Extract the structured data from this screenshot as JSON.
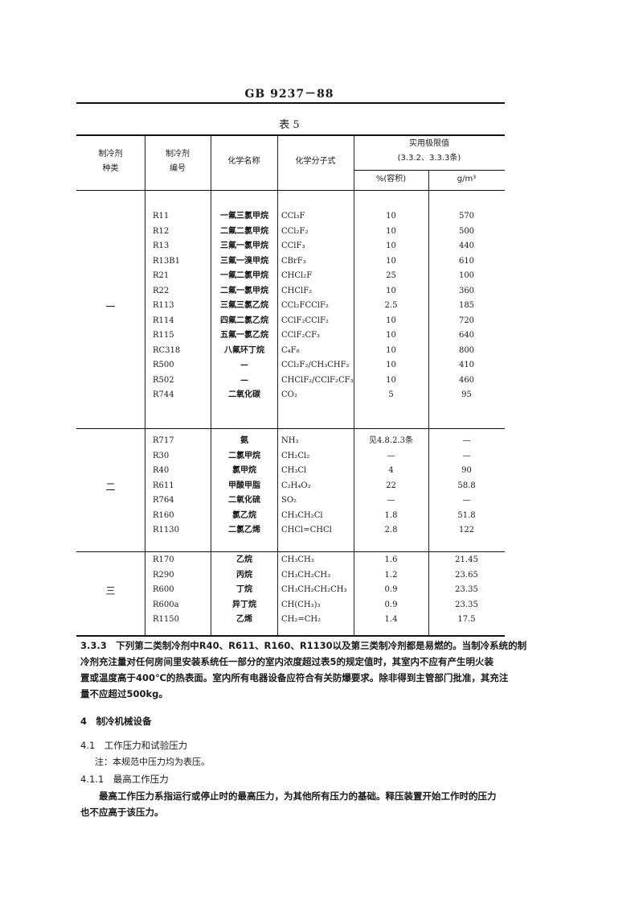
{
  "header": {
    "standard": "GB 9237－88"
  },
  "table": {
    "caption": "表 5",
    "headers": {
      "category": [
        "制冷剂",
        "种类"
      ],
      "code": [
        "制冷剂",
        "编号"
      ],
      "name": "化学名称",
      "formula": "化学分子式",
      "limit": "实用极限值",
      "limit_ref": "(3.3.2、3.3.3条)",
      "pct": "%(容积)",
      "gm3": "g/m³"
    },
    "groups": [
      {
        "category": "一",
        "rows": [
          [
            "R11",
            "一氟三氯甲烷",
            "CCl₃F",
            "10",
            "570"
          ],
          [
            "R12",
            "二氟二氯甲烷",
            "CCl₂F₂",
            "10",
            "500"
          ],
          [
            "R13",
            "三氟一氯甲烷",
            "CClF₃",
            "10",
            "440"
          ],
          [
            "R13B1",
            "三氟一溴甲烷",
            "CBrF₃",
            "10",
            "610"
          ],
          [
            "R21",
            "一氟二氯甲烷",
            "CHCl₂F",
            "25",
            "100"
          ],
          [
            "R22",
            "二氟一氯甲烷",
            "CHClF₂",
            "10",
            "360"
          ],
          [
            "R113",
            "三氟三氯乙烷",
            "CCl₂FCClF₂",
            "2.5",
            "185"
          ],
          [
            "R114",
            "四氟二氯乙烷",
            "CClF₂CClF₂",
            "10",
            "720"
          ],
          [
            "R115",
            "五氟一氯乙烷",
            "CClF₂CF₃",
            "10",
            "640"
          ],
          [
            "RC318",
            "八氟环丁烷",
            "C₄F₈",
            "10",
            "800"
          ],
          [
            "R500",
            "—",
            "CCl₂F₂/CH₃CHF₂",
            "10",
            "410"
          ],
          [
            "R502",
            "—",
            "CHClF₂/CClF₂CF₃",
            "10",
            "460"
          ],
          [
            "R744",
            "二氧化碳",
            "CO₂",
            "5",
            "95"
          ]
        ]
      },
      {
        "category": "二",
        "rows": [
          [
            "R717",
            "氨",
            "NH₃",
            "见4.8.2.3条",
            "—"
          ],
          [
            "R30",
            "二氯甲烷",
            "CH₂Cl₂",
            "—",
            "—"
          ],
          [
            "R40",
            "氯甲烷",
            "CH₃Cl",
            "4",
            "90"
          ],
          [
            "R611",
            "甲酸甲脂",
            "C₂H₄O₂",
            "22",
            "58.8"
          ],
          [
            "R764",
            "二氧化硫",
            "SO₂",
            "—",
            "—"
          ],
          [
            "R160",
            "氯乙烷",
            "CH₃CH₂Cl",
            "1.8",
            "51.8"
          ],
          [
            "R1130",
            "二氯乙烯",
            "CHCl=CHCl",
            "2.8",
            "122"
          ]
        ]
      },
      {
        "category": "三",
        "rows": [
          [
            "R170",
            "乙烷",
            "CH₃CH₃",
            "1.6",
            "21.45"
          ],
          [
            "R290",
            "丙烷",
            "CH₃CH₂CH₃",
            "1.2",
            "23.65"
          ],
          [
            "R600",
            "丁烷",
            "CH₃CH₂CH₂CH₃",
            "0.9",
            "23.35"
          ],
          [
            "R600a",
            "异丁烷",
            "CH(CH₃)₃",
            "0.9",
            "23.35"
          ],
          [
            "R1150",
            "乙烯",
            "CH₂=CH₂",
            "1.4",
            "17.5"
          ]
        ]
      }
    ]
  },
  "body": {
    "p333": [
      "3.3.3　下列第二类制冷剂中R40、R611、R160、R1130以及第三类制冷剂都是易燃的。当制冷系统的制",
      "冷剂充注量对任何房间里安装系统任一部分的室内浓度超过表5的规定值时，其室内不应有产生明火装",
      "置或温度高于400℃的热表面。室内所有电器设备应符合有关防爆要求。除非得到主管部门批准，其充注",
      "量不应超过500kg。"
    ],
    "s4": "4　制冷机械设备",
    "s41": "4.1　工作压力和试验压力",
    "note": "注：本规范中压力均为表压。",
    "s411": "4.1.1　最高工作压力",
    "p411": [
      "　　最高工作压力系指运行或停止时的最高压力，为其他所有压力的基础。释压装置开始工作时的压力",
      "也不应高于该压力。"
    ]
  }
}
